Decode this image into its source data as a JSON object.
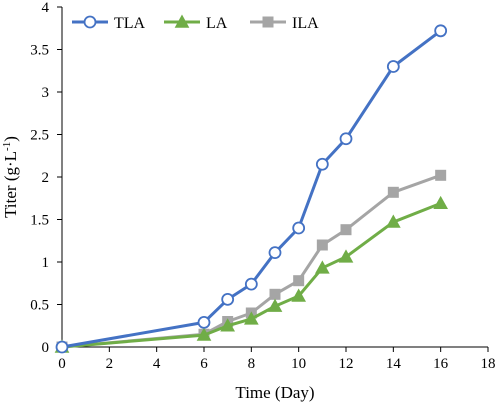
{
  "chart_data": {
    "type": "line",
    "xlabel": "Time (Day)",
    "ylabel": {
      "base": "Titer (g·L",
      "sup": "-1",
      "close": ")"
    },
    "xlim": [
      0,
      18
    ],
    "ylim": [
      0,
      4
    ],
    "xticks": [
      0,
      2,
      4,
      6,
      8,
      10,
      12,
      14,
      16,
      18
    ],
    "yticks": [
      0,
      0.5,
      1,
      1.5,
      2,
      2.5,
      3,
      3.5,
      4
    ],
    "xtick_labels": [
      "0",
      "2",
      "4",
      "6",
      "8",
      "10",
      "12",
      "14",
      "16",
      "18"
    ],
    "ytick_labels": [
      "0",
      "0.5",
      "1",
      "1.5",
      "2",
      "2.5",
      "3",
      "3.5",
      "4"
    ],
    "grid": false,
    "legend_position": "top-left",
    "series": [
      {
        "name": "TLA",
        "color": "#4472C4",
        "marker": "open-circle",
        "x": [
          0,
          6,
          7,
          8,
          9,
          10,
          11,
          12,
          14,
          16
        ],
        "y": [
          0,
          0.29,
          0.56,
          0.74,
          1.11,
          1.4,
          2.15,
          2.45,
          3.3,
          3.72
        ]
      },
      {
        "name": "LA",
        "color": "#70AD47",
        "marker": "triangle",
        "x": [
          0,
          6,
          7,
          8,
          9,
          10,
          11,
          12,
          14,
          16
        ],
        "y": [
          0,
          0.14,
          0.25,
          0.33,
          0.48,
          0.6,
          0.93,
          1.06,
          1.47,
          1.69
        ]
      },
      {
        "name": "ILA",
        "color": "#A5A5A5",
        "marker": "square",
        "x": [
          0,
          6,
          7,
          8,
          9,
          10,
          11,
          12,
          14,
          16
        ],
        "y": [
          0,
          0.15,
          0.3,
          0.4,
          0.62,
          0.78,
          1.2,
          1.38,
          1.82,
          2.02
        ]
      }
    ]
  }
}
